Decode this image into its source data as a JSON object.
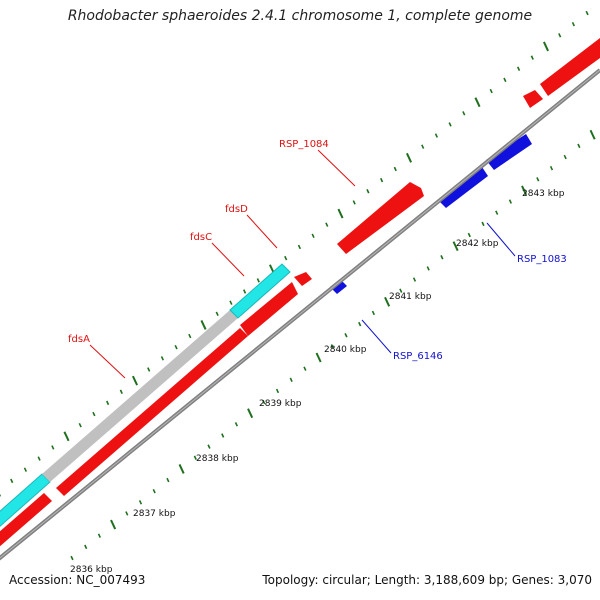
{
  "title": "Rhodobacter sphaeroides 2.4.1 chromosome 1, complete genome",
  "accession": "Accession: NC_007493",
  "summary": "Topology: circular; Length: 3,188,609 bp; Genes: 3,070",
  "colors": {
    "forward_gene": "#ee1111",
    "reverse_gene": "#1111dd",
    "cyan_feature": "#22e6e6",
    "gray_feature": "#c0c0c0",
    "backbone": "#808080",
    "tick": "#1f6f1f",
    "label_red": "#dd1111",
    "label_blue": "#1111cc"
  },
  "kbp_ticks": [
    "2836 kbp",
    "2837 kbp",
    "2838 kbp",
    "2839 kbp",
    "2840 kbp",
    "2841 kbp",
    "2842 kbp",
    "2843 kbp"
  ],
  "gene_labels": [
    {
      "text": "fdsA",
      "strand": "forward"
    },
    {
      "text": "fdsC",
      "strand": "forward"
    },
    {
      "text": "fdsD",
      "strand": "forward"
    },
    {
      "text": "RSP_1084",
      "strand": "forward"
    },
    {
      "text": "RSP_1083",
      "strand": "reverse"
    },
    {
      "text": "RSP_6146",
      "strand": "reverse"
    }
  ]
}
